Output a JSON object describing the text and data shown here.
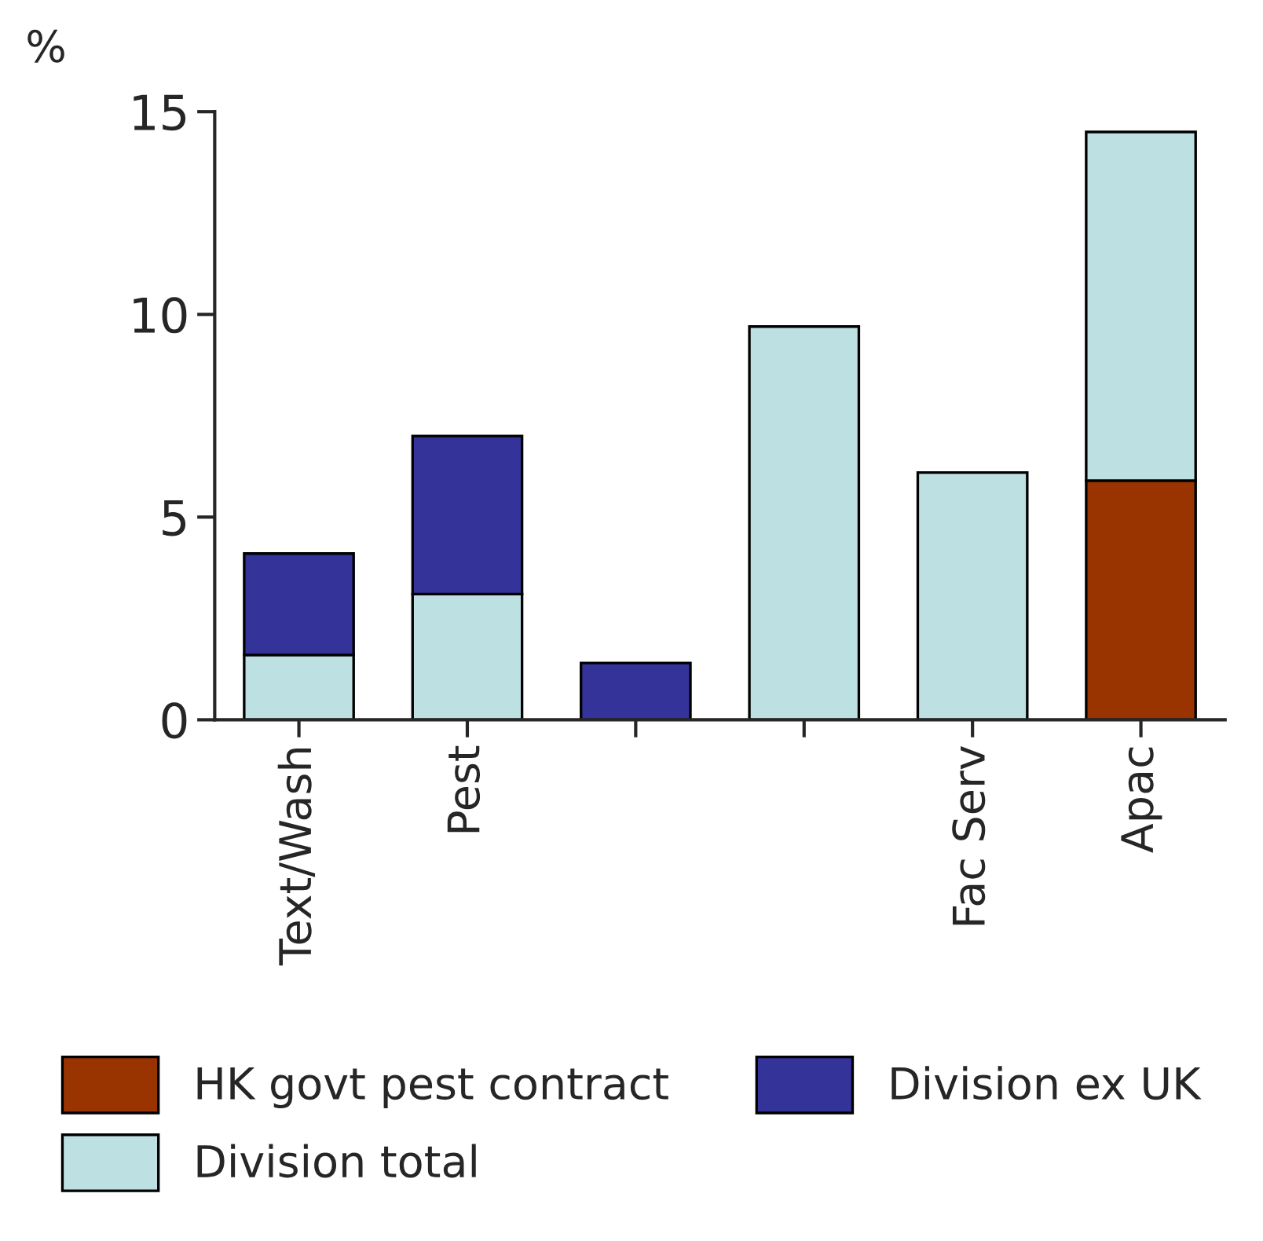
{
  "chart_data": {
    "type": "bar",
    "stacked": true,
    "ylabel": "%",
    "categories": [
      "Text/Wash",
      "Pest",
      null,
      null,
      "Fac Serv",
      "Apac"
    ],
    "series": [
      {
        "name": "HK govt pest contract",
        "color": "#993300",
        "values": [
          null,
          null,
          null,
          null,
          null,
          5.9
        ]
      },
      {
        "name": "Division total",
        "color": "#bde0e2",
        "values": [
          1.6,
          3.1,
          null,
          9.7,
          6.1,
          8.6
        ]
      },
      {
        "name": "Division ex UK",
        "color": "#333399",
        "values": [
          2.5,
          3.9,
          1.4,
          null,
          null,
          null
        ]
      }
    ],
    "ylim": [
      0,
      15
    ],
    "yticks": [
      0,
      5,
      10,
      15
    ],
    "grid": false,
    "legend": "bottom"
  }
}
